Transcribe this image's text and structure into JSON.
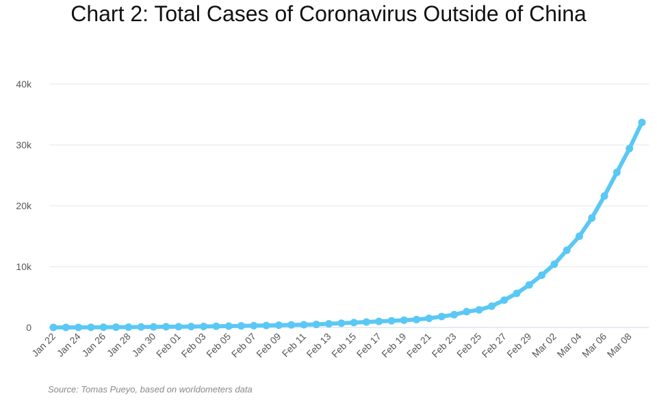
{
  "chart_data": {
    "type": "line",
    "title": "Chart 2: Total Cases of Coronavirus Outside of China",
    "source": "Source: Tomas Pueyo, based on worldometers data",
    "xlabel": "",
    "ylabel": "",
    "ylim": [
      0,
      40000
    ],
    "y_ticks": [
      "0",
      "10k",
      "20k",
      "30k",
      "40k"
    ],
    "grid": true,
    "color": "#5AC8F5",
    "x": [
      "Jan 22",
      "Jan 23",
      "Jan 24",
      "Jan 25",
      "Jan 26",
      "Jan 27",
      "Jan 28",
      "Jan 29",
      "Jan 30",
      "Jan 31",
      "Feb 01",
      "Feb 02",
      "Feb 03",
      "Feb 04",
      "Feb 05",
      "Feb 06",
      "Feb 07",
      "Feb 08",
      "Feb 09",
      "Feb 10",
      "Feb 11",
      "Feb 12",
      "Feb 13",
      "Feb 14",
      "Feb 15",
      "Feb 16",
      "Feb 17",
      "Feb 18",
      "Feb 19",
      "Feb 20",
      "Feb 21",
      "Feb 22",
      "Feb 23",
      "Feb 24",
      "Feb 25",
      "Feb 26",
      "Feb 27",
      "Feb 28",
      "Feb 29",
      "Mar 01",
      "Mar 02",
      "Mar 03",
      "Mar 04",
      "Mar 05",
      "Mar 06",
      "Mar 07",
      "Mar 08",
      "Mar 09"
    ],
    "x_tick_labels": [
      "Jan 22",
      "Jan 24",
      "Jan 26",
      "Jan 28",
      "Jan 30",
      "Feb 01",
      "Feb 03",
      "Feb 05",
      "Feb 07",
      "Feb 09",
      "Feb 11",
      "Feb 13",
      "Feb 15",
      "Feb 17",
      "Feb 19",
      "Feb 21",
      "Feb 23",
      "Feb 25",
      "Feb 27",
      "Feb 29",
      "Mar 02",
      "Mar 04",
      "Mar 06",
      "Mar 08"
    ],
    "values": [
      10,
      10,
      20,
      30,
      40,
      50,
      60,
      80,
      100,
      120,
      130,
      150,
      170,
      200,
      230,
      260,
      300,
      330,
      380,
      420,
      450,
      500,
      600,
      700,
      800,
      900,
      1000,
      1100,
      1200,
      1300,
      1500,
      1800,
      2100,
      2600,
      2900,
      3500,
      4500,
      5600,
      7000,
      8600,
      10400,
      12700,
      15000,
      18000,
      21600,
      25500,
      29400,
      33700
    ]
  }
}
